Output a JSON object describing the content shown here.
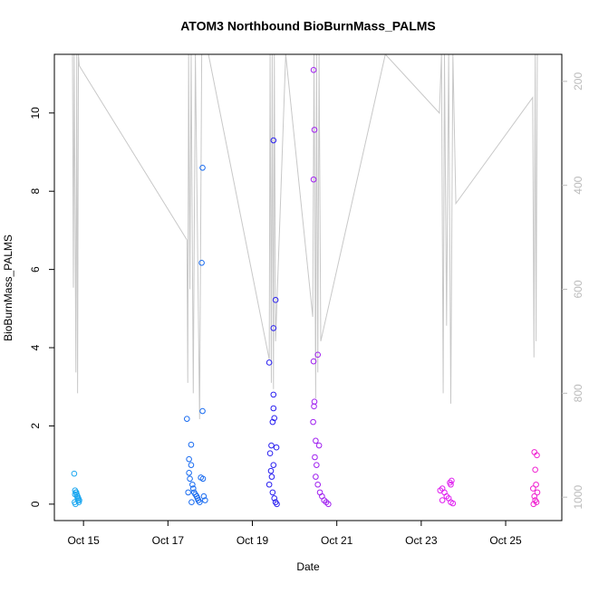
{
  "chart_data": {
    "type": "scatter",
    "title": "ATOM3 Northbound BioBurnMass_PALMS",
    "xlabel": "Date",
    "ylabel": "BioBurnMass_PALMS",
    "xlim": [
      14.31,
      26.33
    ],
    "xticks": [
      {
        "value": 15,
        "label": "Oct 15"
      },
      {
        "value": 17,
        "label": "Oct 17"
      },
      {
        "value": 19,
        "label": "Oct 19"
      },
      {
        "value": 21,
        "label": "Oct 21"
      },
      {
        "value": 23,
        "label": "Oct 23"
      },
      {
        "value": 25,
        "label": "Oct 25"
      }
    ],
    "ylim": [
      -0.42,
      11.5
    ],
    "yticks": [
      0,
      2,
      4,
      6,
      8,
      10
    ],
    "y2lim": [
      1045,
      148
    ],
    "y2ticks": [
      200,
      400,
      600,
      800,
      1000
    ],
    "series": [
      {
        "color": "#1ea8f0",
        "x": [
          14.78,
          14.8,
          14.82,
          14.84,
          14.86,
          14.88,
          14.9,
          14.79,
          14.81,
          14.83,
          14.85,
          14.87,
          14.89,
          14.8,
          14.86
        ],
        "values": [
          0.78,
          0.35,
          0.3,
          0.25,
          0.2,
          0.15,
          0.1,
          0.05,
          0,
          0.3,
          0.2,
          0.1,
          0.05,
          0.25,
          0.15
        ]
      },
      {
        "color": "#1a6cf0",
        "x": [
          17.45,
          17.55,
          17.5,
          17.55,
          17.5,
          17.52,
          17.58,
          17.6,
          17.62,
          17.65,
          17.68,
          17.7,
          17.72,
          17.75,
          17.82,
          17.8,
          17.82,
          17.78,
          17.83,
          17.85,
          17.88,
          17.48,
          17.56
        ],
        "values": [
          2.18,
          1.52,
          1.15,
          1.0,
          0.8,
          0.65,
          0.5,
          0.4,
          0.3,
          0.25,
          0.2,
          0.15,
          0.1,
          0.05,
          8.6,
          6.17,
          2.38,
          0.68,
          0.65,
          0.2,
          0.1,
          0.3,
          0.05
        ]
      },
      {
        "color": "#2a20f0",
        "x": [
          19.4,
          19.5,
          19.55,
          19.5,
          19.5,
          19.5,
          19.52,
          19.48,
          19.45,
          19.57,
          19.42,
          19.5,
          19.44,
          19.46,
          19.4,
          19.48,
          19.52,
          19.55,
          19.58
        ],
        "values": [
          3.62,
          9.3,
          5.22,
          4.5,
          2.8,
          2.45,
          2.2,
          2.1,
          1.5,
          1.45,
          1.3,
          1.0,
          0.85,
          0.7,
          0.5,
          0.3,
          0.15,
          0.05,
          0
        ]
      },
      {
        "color": "#a020f0",
        "x": [
          20.45,
          20.47,
          20.45,
          20.55,
          20.45,
          20.47,
          20.46,
          20.44,
          20.5,
          20.58,
          20.48,
          20.52,
          20.5,
          20.55,
          20.6,
          20.65,
          20.7,
          20.75,
          20.8
        ],
        "values": [
          11.1,
          9.57,
          8.3,
          3.82,
          3.65,
          2.62,
          2.5,
          2.1,
          1.62,
          1.5,
          1.2,
          1.0,
          0.7,
          0.5,
          0.3,
          0.2,
          0.1,
          0.05,
          0
        ]
      },
      {
        "color": "#e020f0",
        "x": [
          23.72,
          23.68,
          23.7,
          23.5,
          23.45,
          23.55,
          23.6,
          23.65,
          23.5,
          23.7,
          23.75
        ],
        "values": [
          0.6,
          0.55,
          0.5,
          0.4,
          0.35,
          0.3,
          0.2,
          0.15,
          0.1,
          0.05,
          0.02
        ]
      },
      {
        "color": "#f020d0",
        "x": [
          25.68,
          25.74,
          25.7,
          25.72,
          25.65,
          25.75,
          25.68,
          25.7,
          25.73,
          25.66
        ],
        "values": [
          1.33,
          1.25,
          0.88,
          0.5,
          0.4,
          0.3,
          0.2,
          0.1,
          0.05,
          0
        ]
      }
    ],
    "pressure": {
      "axis": "y2",
      "color": "#c8c8c8",
      "x": [
        14.74,
        14.76,
        14.78,
        14.82,
        14.84,
        14.86,
        14.88,
        14.9,
        17.45,
        17.47,
        17.49,
        17.52,
        17.55,
        17.6,
        17.65,
        17.75,
        17.8,
        17.96,
        19.4,
        19.42,
        19.45,
        19.47,
        19.5,
        19.52,
        19.55,
        19.79,
        20.43,
        20.46,
        20.5,
        20.52,
        20.55,
        20.58,
        20.62,
        22.15,
        23.43,
        23.48,
        23.52,
        23.55,
        23.6,
        23.65,
        23.7,
        23.75,
        23.82,
        25.64,
        25.67,
        25.7,
        25.72,
        25.75,
        25.78
      ],
      "values": [
        148,
        597,
        148,
        760,
        148,
        800,
        148,
        170,
        505,
        780,
        148,
        600,
        148,
        800,
        148,
        850,
        148,
        148,
        735,
        148,
        780,
        148,
        792,
        148,
        700,
        148,
        653,
        148,
        810,
        148,
        760,
        148,
        700,
        148,
        261,
        148,
        800,
        148,
        670,
        148,
        820,
        148,
        435,
        231,
        731,
        148,
        700,
        148,
        148
      ]
    }
  }
}
